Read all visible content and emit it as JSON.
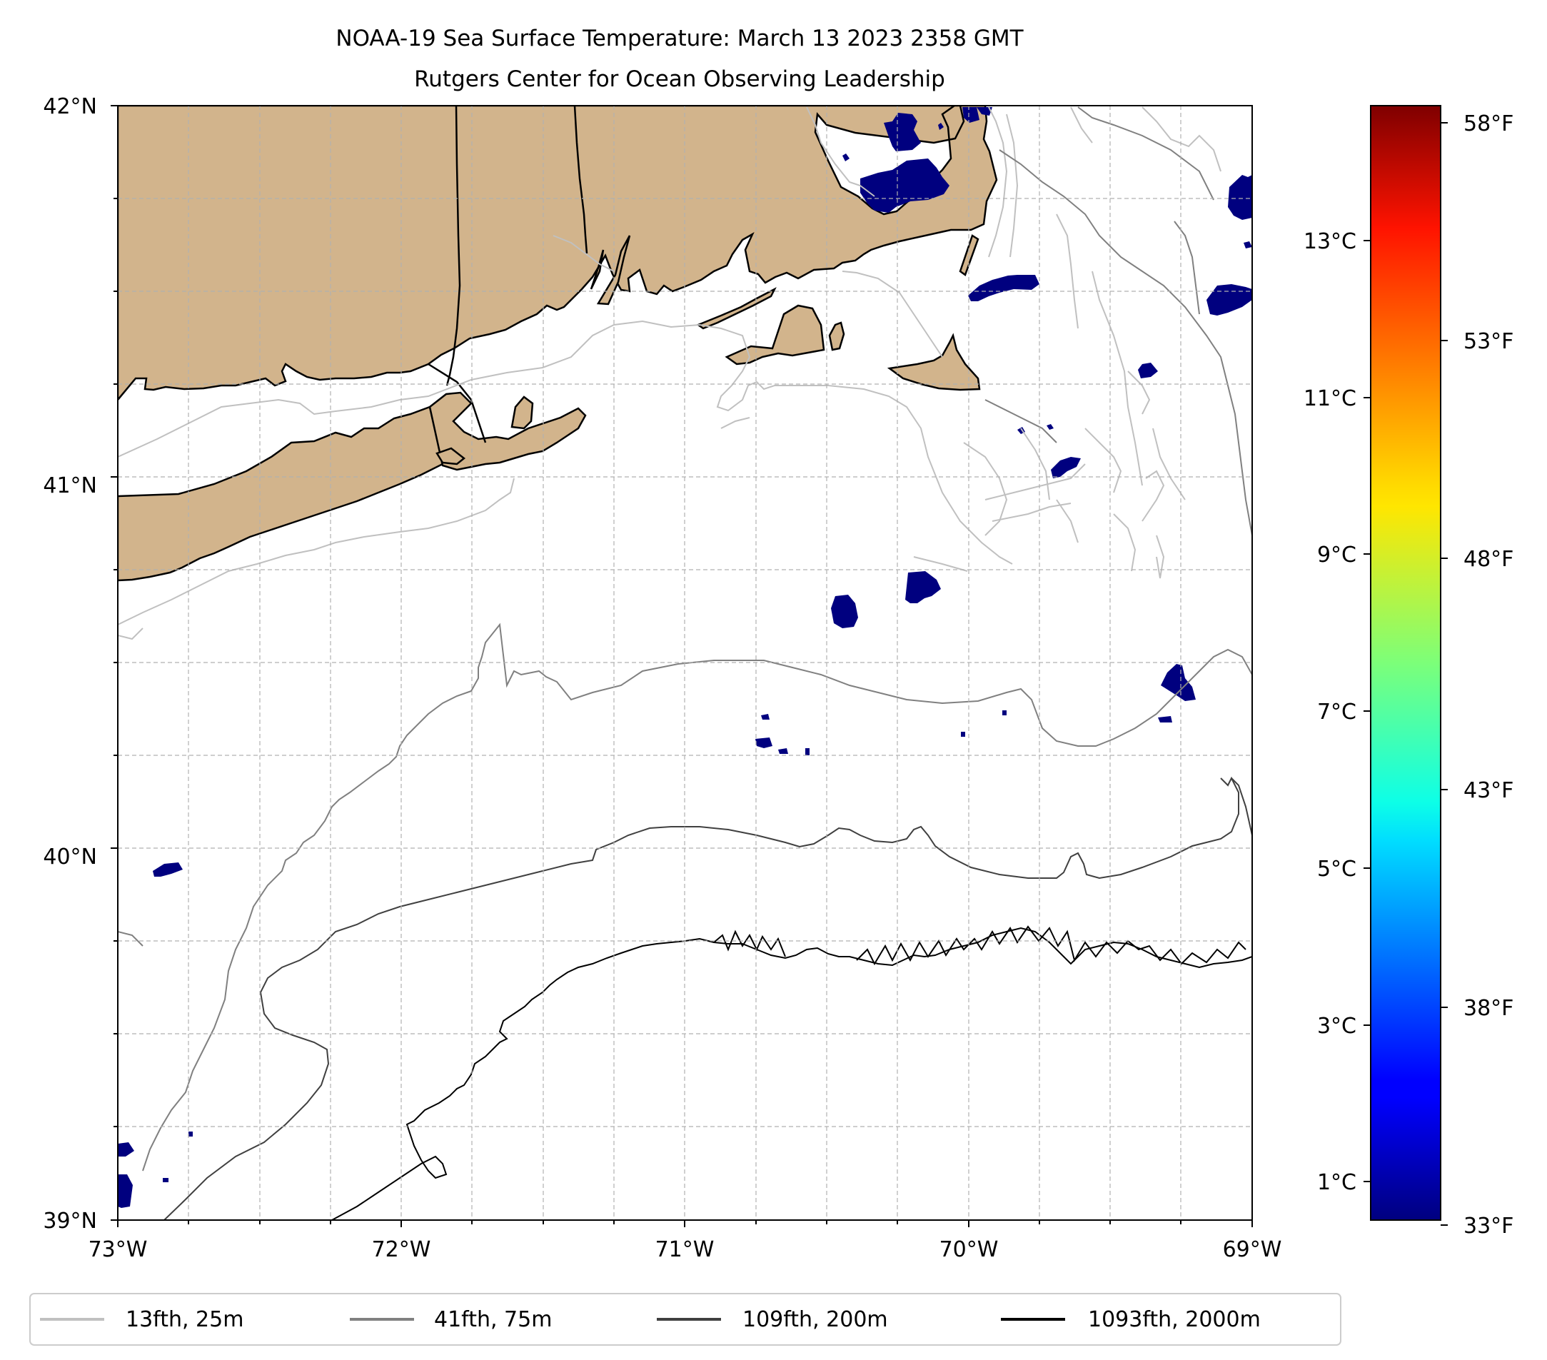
{
  "title": {
    "line1": "NOAA-19 Sea Surface Temperature: March 13 2023 2358 GMT",
    "line2": "Rutgers Center for Ocean Observing Leadership"
  },
  "map": {
    "lon_range": [
      -73,
      -69
    ],
    "lat_range": [
      39,
      42
    ],
    "lon_ticks": [
      {
        "value": -73,
        "label": "73°W"
      },
      {
        "value": -72,
        "label": "72°W"
      },
      {
        "value": -71,
        "label": "71°W"
      },
      {
        "value": -70,
        "label": "70°W"
      },
      {
        "value": -69,
        "label": "69°W"
      }
    ],
    "lat_ticks": [
      {
        "value": 42,
        "label": "42°N"
      },
      {
        "value": 41,
        "label": "41°N"
      },
      {
        "value": 40,
        "label": "40°N"
      },
      {
        "value": 39,
        "label": "39°N"
      }
    ],
    "land_color": "#d2b48c",
    "cold_patch_color": "#00007f"
  },
  "colorbar": {
    "celsius_range": [
      0.5,
      14.7
    ],
    "celsius_ticks": [
      {
        "value": 1,
        "label": "1°C"
      },
      {
        "value": 3,
        "label": "3°C"
      },
      {
        "value": 5,
        "label": "5°C"
      },
      {
        "value": 7,
        "label": "7°C"
      },
      {
        "value": 9,
        "label": "9°C"
      },
      {
        "value": 11,
        "label": "11°C"
      },
      {
        "value": 13,
        "label": "13°C"
      }
    ],
    "fahrenheit_ticks": [
      {
        "value": 33,
        "label": "33°F"
      },
      {
        "value": 38,
        "label": "38°F"
      },
      {
        "value": 43,
        "label": "43°F"
      },
      {
        "value": 48,
        "label": "48°F"
      },
      {
        "value": 53,
        "label": "53°F"
      },
      {
        "value": 58,
        "label": "58°F"
      }
    ],
    "colormap": "jet"
  },
  "legend": {
    "items": [
      {
        "label": "13fth, 25m",
        "color": "#c0c0c0"
      },
      {
        "label": "41fth, 75m",
        "color": "#808080"
      },
      {
        "label": "109fth, 200m",
        "color": "#404040"
      },
      {
        "label": "1093fth, 2000m",
        "color": "#000000"
      }
    ]
  }
}
